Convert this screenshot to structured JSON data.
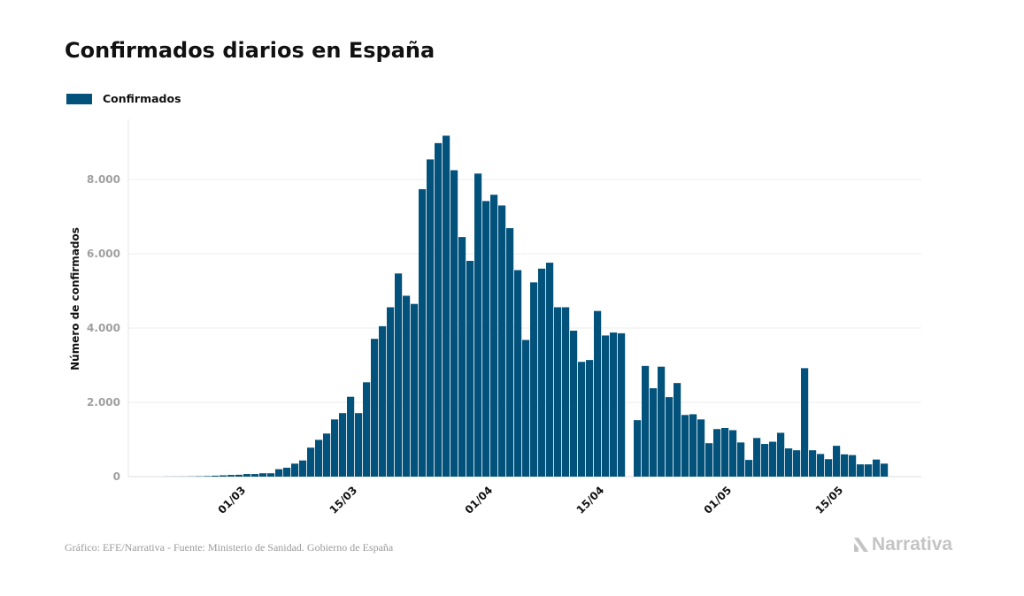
{
  "title": "Confirmados diarios en España",
  "legend": {
    "label": "Confirmados",
    "color": "#03527b"
  },
  "footer": "Gráfico: EFE/Narrativa - Fuente: Ministerio de Sanidad. Gobierno de España",
  "logo_text": "Narrativa",
  "chart_data": {
    "type": "bar",
    "title": "Confirmados diarios en España",
    "xlabel": "",
    "ylabel": "Número de confirmados",
    "ylim": [
      0,
      9500
    ],
    "yticks": [
      0,
      2000,
      4000,
      6000,
      8000
    ],
    "ytick_labels": [
      "0",
      "2.000",
      "4.000",
      "6.000",
      "8.000"
    ],
    "grid": "horizontal",
    "legend_position": "top-left",
    "xtick_labels": [
      "01/03",
      "15/03",
      "01/04",
      "15/04",
      "01/05",
      "15/05"
    ],
    "categories": [
      "21/02",
      "22/02",
      "23/02",
      "24/02",
      "25/02",
      "26/02",
      "27/02",
      "28/02",
      "29/02",
      "01/03",
      "02/03",
      "03/03",
      "04/03",
      "05/03",
      "06/03",
      "07/03",
      "08/03",
      "09/03",
      "10/03",
      "11/03",
      "12/03",
      "13/03",
      "14/03",
      "15/03",
      "16/03",
      "17/03",
      "18/03",
      "19/03",
      "20/03",
      "21/03",
      "22/03",
      "23/03",
      "24/03",
      "25/03",
      "26/03",
      "27/03",
      "28/03",
      "29/03",
      "30/03",
      "31/03",
      "01/04",
      "02/04",
      "03/04",
      "04/04",
      "05/04",
      "06/04",
      "07/04",
      "08/04",
      "09/04",
      "10/04",
      "11/04",
      "12/04",
      "13/04",
      "14/04",
      "15/04",
      "16/04",
      "17/04",
      "18/04",
      "19/04",
      "20/04",
      "21/04",
      "22/04",
      "23/04",
      "24/04",
      "25/04",
      "26/04",
      "27/04",
      "28/04",
      "29/04",
      "30/04",
      "01/05",
      "02/05",
      "03/05",
      "04/05",
      "05/05",
      "06/05",
      "07/05",
      "08/05",
      "09/05",
      "10/05",
      "11/05",
      "12/05",
      "13/05",
      "14/05",
      "15/05",
      "16/05",
      "17/05",
      "18/05",
      "19/05",
      "20/05",
      "21/05"
    ],
    "series": [
      {
        "name": "Confirmados",
        "color": "#03527b",
        "values": [
          2,
          3,
          4,
          6,
          10,
          15,
          25,
          35,
          45,
          50,
          70,
          70,
          90,
          90,
          200,
          240,
          350,
          435,
          780,
          990,
          1160,
          1540,
          1710,
          2150,
          1710,
          2540,
          3710,
          4050,
          4560,
          5470,
          4870,
          4650,
          7740,
          8540,
          8980,
          9180,
          8250,
          6450,
          5810,
          8160,
          7420,
          7590,
          7300,
          6690,
          5560,
          3680,
          5230,
          5600,
          5760,
          4560,
          4560,
          3930,
          3090,
          3140,
          4460,
          3800,
          3880,
          3860,
          null,
          1520,
          2980,
          2380,
          2960,
          2140,
          2520,
          1660,
          1680,
          1540,
          900,
          1280,
          1310,
          1250,
          920,
          450,
          1040,
          880,
          940,
          1180,
          760,
          710,
          2920,
          710,
          610,
          470,
          830,
          600,
          580,
          330,
          330,
          460,
          350
        ]
      }
    ]
  }
}
